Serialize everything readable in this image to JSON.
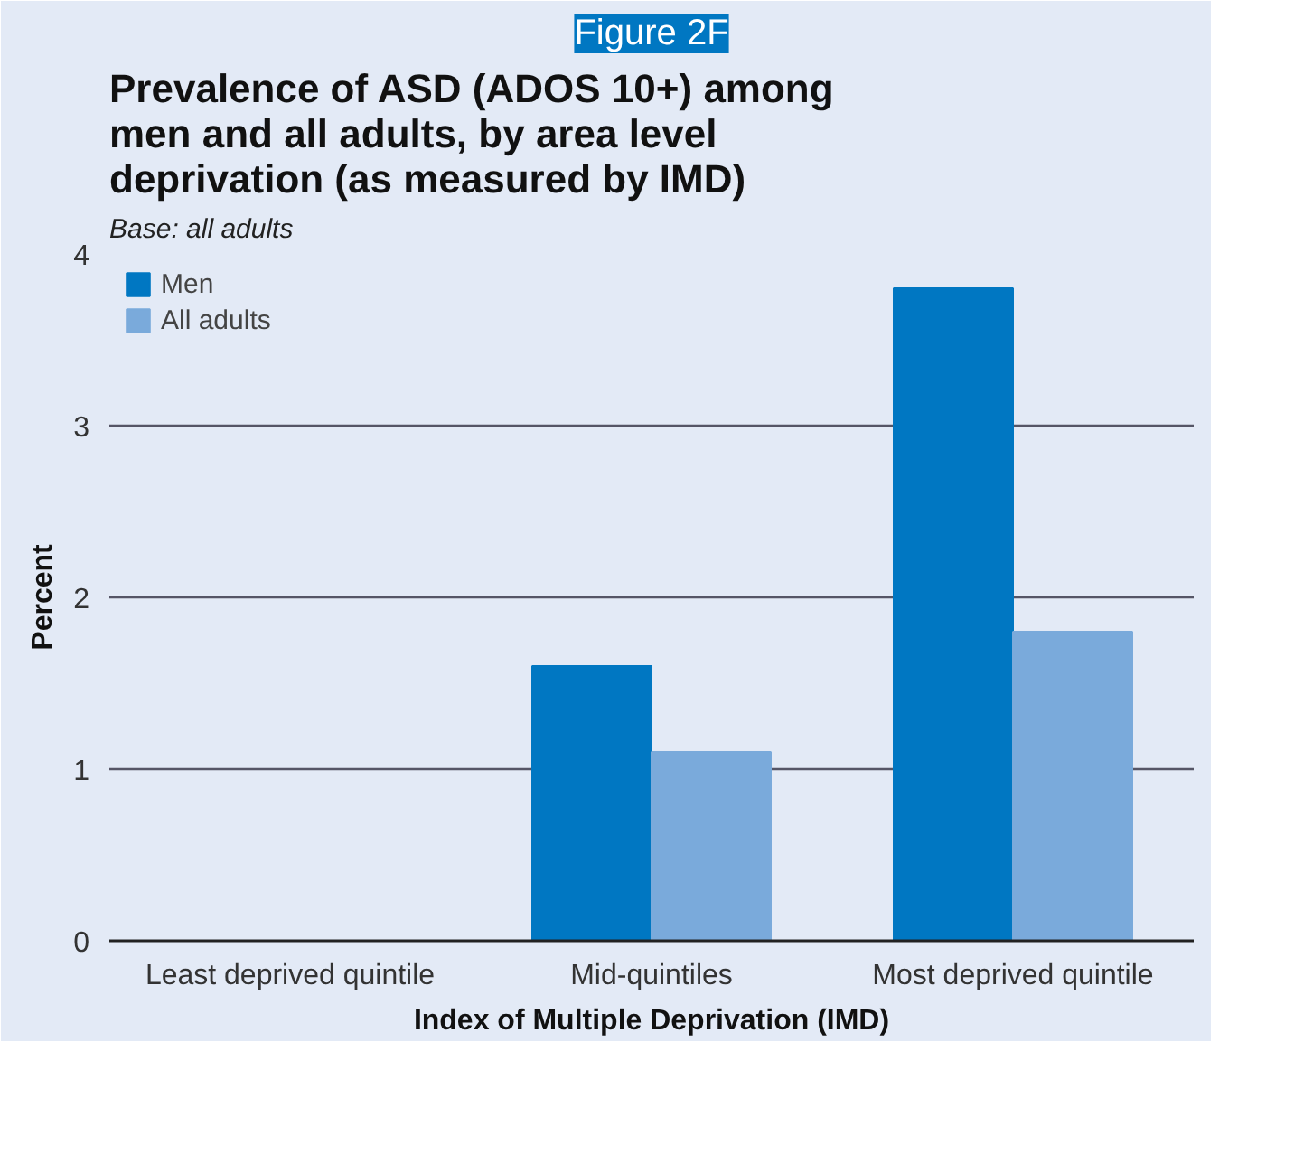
{
  "chart_data": {
    "type": "bar",
    "title": "Figure 2F",
    "subtitle": "Prevalence of ASD (ADOS 10+) among men and all adults, by area level deprivation (as measured by IMD)",
    "annotations": [
      "Base: all adults"
    ],
    "xlabel": "Index of Multiple Deprivation (IMD)",
    "ylabel": "Percent",
    "categories": [
      "Least deprived quintile",
      "Mid-quintiles",
      "Most deprived quintile"
    ],
    "series": [
      {
        "name": "Men",
        "color": "#0077c2",
        "values": [
          0,
          1.6,
          3.8
        ]
      },
      {
        "name": "All adults",
        "color": "#7aaadb",
        "values": [
          0,
          1.1,
          1.8
        ]
      }
    ],
    "ylim": [
      0,
      4
    ],
    "yticks": [
      0,
      1,
      2,
      3,
      4
    ],
    "grid": "y",
    "legend": "top left"
  }
}
